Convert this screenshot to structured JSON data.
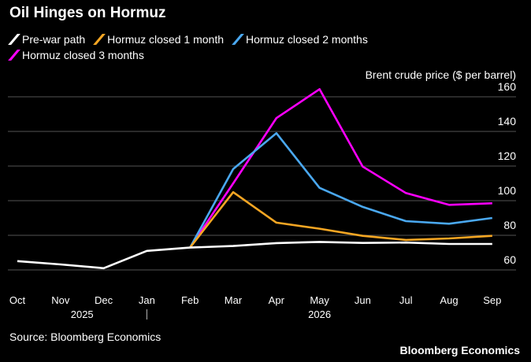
{
  "title": "Oil Hinges on Hormuz",
  "source": "Source: Bloomberg Economics",
  "brand": "Bloomberg Economics",
  "chart_data": {
    "type": "line",
    "ylabel": "Brent crude price ($ per barrel)",
    "ylim": [
      55,
      165
    ],
    "yticks": [
      60,
      80,
      100,
      120,
      140,
      160
    ],
    "grid": true,
    "legend": "top-left",
    "categories": [
      "Oct",
      "Nov",
      "Dec",
      "Jan",
      "Feb",
      "Mar",
      "Apr",
      "May",
      "Jun",
      "Jul",
      "Aug",
      "Sep"
    ],
    "year_labels": [
      {
        "label": "2025",
        "between": [
          "Nov",
          "Dec"
        ]
      },
      {
        "label": "2026",
        "at": "May"
      }
    ],
    "series": [
      {
        "name": "Pre-war path",
        "color": "#ffffff",
        "values": [
          65.1,
          63.2,
          61,
          71,
          72.9,
          73.8,
          75.5,
          76.2,
          75.6,
          75.8,
          75,
          75
        ]
      },
      {
        "name": "Hormuz closed 1 month",
        "color": "#f5a623",
        "values": [
          null,
          null,
          null,
          null,
          72.9,
          104.9,
          87.3,
          83.8,
          79.7,
          77.3,
          78.2,
          79.7
        ]
      },
      {
        "name": "Hormuz closed 2 months",
        "color": "#4aa8f0",
        "values": [
          null,
          null,
          null,
          null,
          72.9,
          118.3,
          139,
          107.4,
          96.4,
          88.2,
          86.7,
          90
        ]
      },
      {
        "name": "Hormuz closed 3 months",
        "color": "#ff00ff",
        "values": [
          null,
          null,
          null,
          null,
          72.9,
          110,
          147.7,
          164.4,
          119.7,
          104.4,
          97.6,
          98.5
        ]
      }
    ]
  }
}
